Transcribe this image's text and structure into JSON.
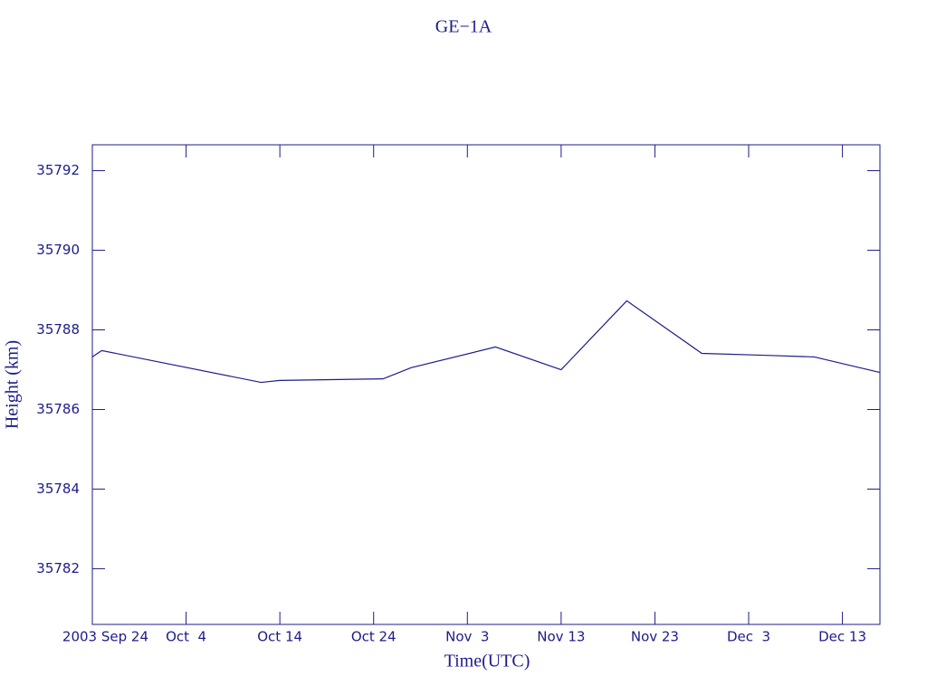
{
  "chart_data": {
    "type": "line",
    "title": "GE−1A",
    "x_label": "Time(UTC)",
    "y_label": "Height (km)",
    "x": [
      "2003-09-24",
      "2003-09-25",
      "2003-10-12",
      "2003-10-14",
      "2003-10-25",
      "2003-10-28",
      "2003-11-06",
      "2003-11-13",
      "2003-11-20",
      "2003-11-28",
      "2003-12-05",
      "2003-12-10",
      "2003-12-17"
    ],
    "series": [
      {
        "name": "Height",
        "color": "#1c1c8a",
        "values": [
          35787.32,
          35787.48,
          35786.68,
          35786.73,
          35786.77,
          35787.05,
          35787.57,
          35787.0,
          35788.73,
          35787.41,
          35787.36,
          35787.32,
          35786.93
        ]
      }
    ],
    "xlim": [
      "2003-09-24",
      "2003-12-17"
    ],
    "xticks": [
      {
        "value": "2003-09-24",
        "label": "2003 Sep 24"
      },
      {
        "value": "2003-10-04",
        "label": "Oct  4"
      },
      {
        "value": "2003-10-14",
        "label": "Oct 14"
      },
      {
        "value": "2003-10-24",
        "label": "Oct 24"
      },
      {
        "value": "2003-11-03",
        "label": "Nov  3"
      },
      {
        "value": "2003-11-13",
        "label": "Nov 13"
      },
      {
        "value": "2003-11-23",
        "label": "Nov 23"
      },
      {
        "value": "2003-12-03",
        "label": "Dec  3"
      },
      {
        "value": "2003-12-13",
        "label": "Dec 13"
      }
    ],
    "ylim": [
      35780.6,
      35792.65
    ],
    "yticks": [
      35782,
      35784,
      35786,
      35788,
      35790,
      35792
    ],
    "grid": false
  }
}
